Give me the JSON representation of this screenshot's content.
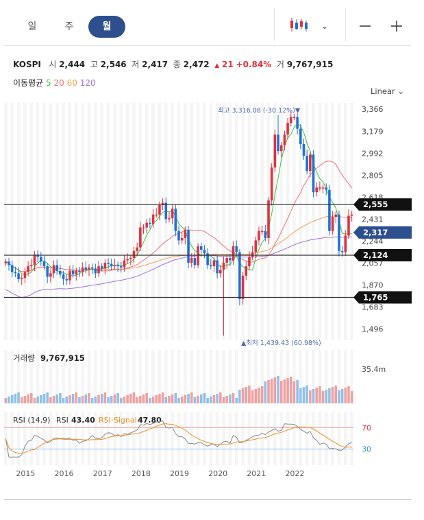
{
  "tabs": [
    {
      "label": "일"
    },
    {
      "label": "주"
    },
    {
      "label": "월",
      "active": true
    }
  ],
  "toolbar": {
    "chart_type_icon": "candlestick-icon",
    "dropdown_icon": "chevron-down-icon",
    "zoom_out_icon": "minus-icon",
    "zoom_in_icon": "plus-icon"
  },
  "info": {
    "symbol": "KOSPI",
    "open_label": "시",
    "open": "2,444",
    "high_label": "고",
    "high": "2,546",
    "low_label": "저",
    "low": "2,417",
    "close_label": "종",
    "close": "2,472",
    "change_arrow": "▲",
    "change": "21",
    "change_pct": "+0.84%",
    "volume_label": "거",
    "volume": "9,767,915"
  },
  "ma": {
    "label": "이동평균",
    "p5": "5",
    "p20": "20",
    "p60": "60",
    "p120": "120"
  },
  "scale_label": "Linear",
  "colors": {
    "up": "#e0303e",
    "down": "#1e6fd9",
    "ma5": "#3cc23c",
    "ma20": "#f07070",
    "ma60": "#f0a050",
    "ma120": "#a070e0",
    "navy": "#2d4f8e",
    "rsi": "#888888",
    "rsi_signal": "#f08c20",
    "rsi30": "#2a8fd9"
  },
  "chart_data": [
    {
      "type": "candlestick",
      "title": "KOSPI",
      "x_ticks": [
        "2015",
        "2016",
        "2017",
        "2018",
        "2019",
        "2020",
        "2021",
        "2022"
      ],
      "y_ticks": [
        "3,366",
        "3,179",
        "2,992",
        "2,805",
        "2,618",
        "2,431",
        "2,244",
        "2,057",
        "1,870",
        "1,683",
        "1,496"
      ],
      "ylim": [
        1400,
        3420
      ],
      "start": "2014-07",
      "close": [
        2070,
        2040,
        1980,
        1970,
        1920,
        1930,
        1980,
        2030,
        2040,
        2130,
        2110,
        2070,
        2030,
        1940,
        1970,
        2040,
        1990,
        1960,
        1920,
        1910,
        1990,
        1960,
        1990,
        1980,
        2020,
        2000,
        2020,
        2010,
        1970,
        2030,
        2010,
        2060,
        2050,
        2030,
        2040,
        2030,
        2020,
        2080,
        2090,
        2100,
        2160,
        2190,
        2360,
        2360,
        2400,
        2390,
        2470,
        2470,
        2550,
        2570,
        2430,
        2440,
        2520,
        2330,
        2250,
        2270,
        2340,
        2060,
        2100,
        2040,
        2200,
        2170,
        2140,
        2040,
        2030,
        2080,
        1970,
        2000,
        2060,
        2100,
        2080,
        2200,
        2150,
        1750,
        1950,
        2030,
        2110,
        2150,
        2250,
        2330,
        2330,
        2270,
        2590,
        2870,
        3150,
        3010,
        3060,
        3150,
        3250,
        3300,
        3300,
        3200,
        3070,
        2970,
        2840,
        2980,
        2660,
        2700,
        2700,
        2700,
        2680,
        2330,
        2450,
        2470,
        2160,
        2150,
        2290,
        2460,
        2470
      ]
    },
    {
      "type": "bar",
      "title": "거래량",
      "title_value": "9,767,915",
      "y_tick": "35.4m"
    },
    {
      "type": "line",
      "title": "RSI (14,9)",
      "rsi_label": "RSI",
      "rsi_value": "43.40",
      "signal_label": "RSI-Signal",
      "signal_value": "47.80",
      "levels": [
        "70",
        "30"
      ],
      "ylim": [
        0,
        100
      ]
    }
  ],
  "price_labels": [
    {
      "text": "2,555",
      "value": 2555,
      "style": "black"
    },
    {
      "text": "2,317",
      "value": 2317,
      "style": "navy"
    },
    {
      "text": "2,124",
      "value": 2124,
      "style": "black"
    },
    {
      "text": "1,765",
      "value": 1765,
      "style": "black"
    }
  ],
  "annotations": {
    "high": {
      "text": "최고 3,316.08 (-30.12%)▼",
      "value": 3316.08
    },
    "low": {
      "text": "▲최저 1,439.43 (60.98%)",
      "value": 1439.43
    }
  }
}
